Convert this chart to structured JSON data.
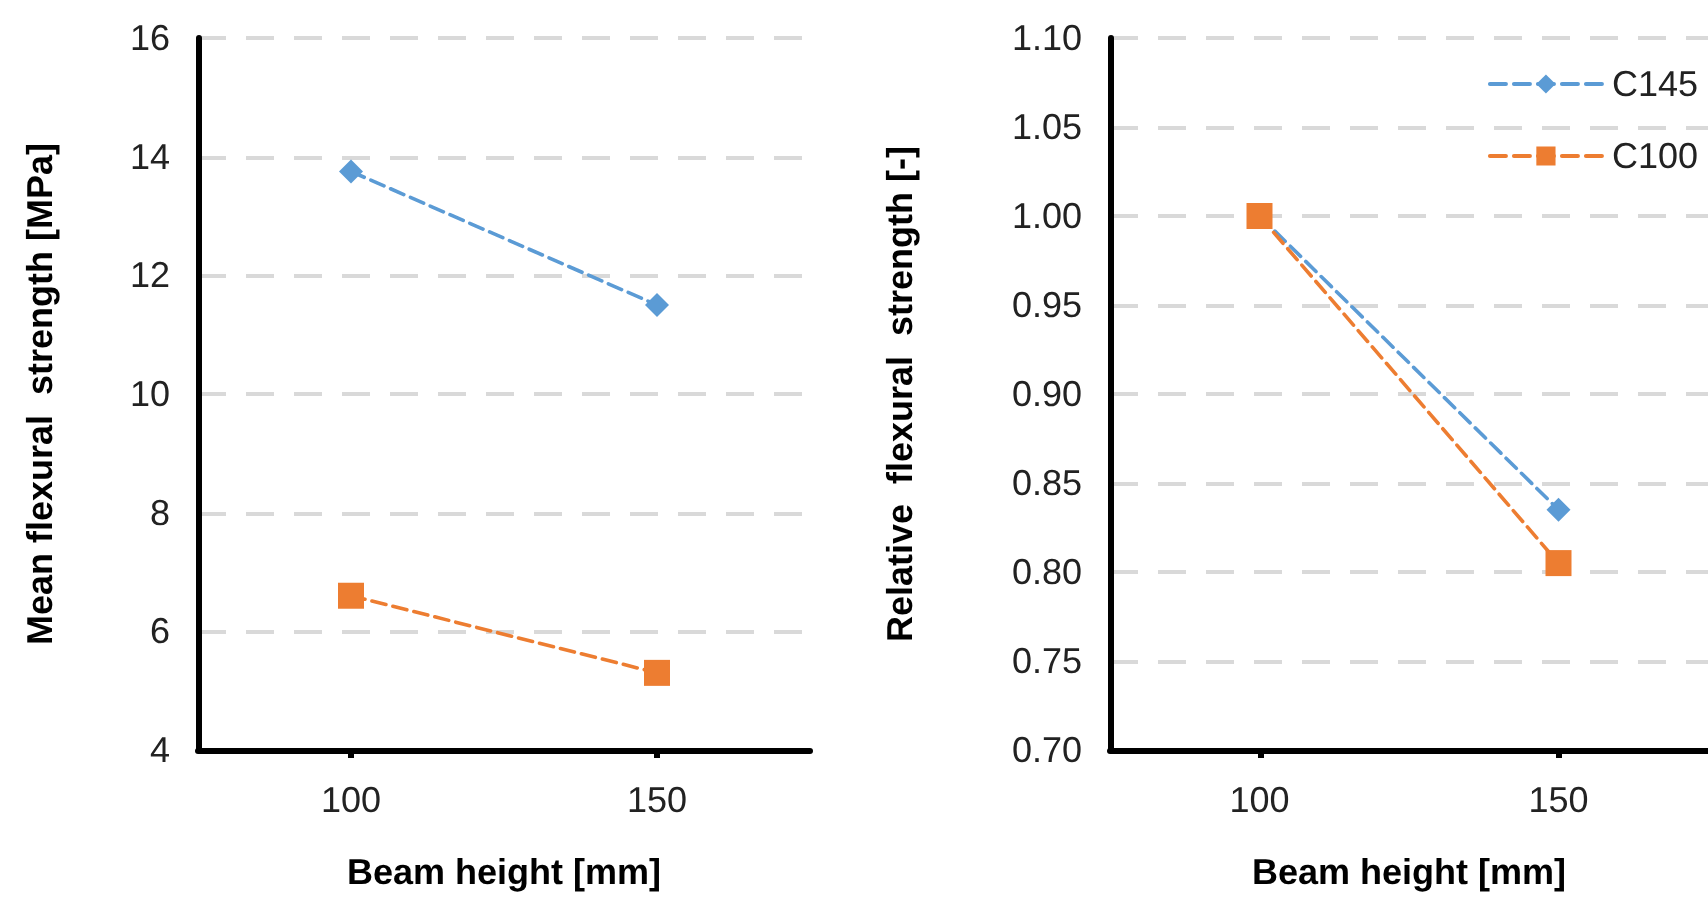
{
  "chart_data": [
    {
      "type": "line",
      "xlabel": "Beam height [mm]",
      "ylabel": "Mean flexural  strength [MPa]",
      "categories": [
        "100",
        "150"
      ],
      "series": [
        {
          "color": "#5b9bd5",
          "marker": "diamond",
          "values": [
            13.75,
            11.5
          ]
        },
        {
          "color": "#ed7d31",
          "marker": "square",
          "values": [
            6.6,
            5.3
          ]
        }
      ],
      "ylim": [
        4,
        16
      ],
      "yticks": [
        4,
        6,
        8,
        10,
        12,
        14,
        16
      ],
      "grid": "y",
      "legend": false,
      "line_style": "dashed"
    },
    {
      "type": "line",
      "xlabel": "Beam height [mm]",
      "ylabel": "Relative  flexural  strength [-]",
      "categories": [
        "100",
        "150"
      ],
      "series": [
        {
          "name": "C145",
          "color": "#5b9bd5",
          "marker": "diamond",
          "values": [
            1.0,
            0.835
          ]
        },
        {
          "name": "C100",
          "color": "#ed7d31",
          "marker": "square",
          "values": [
            1.0,
            0.805
          ]
        }
      ],
      "ylim": [
        0.7,
        1.1
      ],
      "yticks": [
        {
          "value": 0.7,
          "label": "0.70"
        },
        {
          "value": 0.75,
          "label": "0.75"
        },
        {
          "value": 0.8,
          "label": "0.80"
        },
        {
          "value": 0.85,
          "label": "0.85"
        },
        {
          "value": 0.9,
          "label": "0.90"
        },
        {
          "value": 0.95,
          "label": "0.95"
        },
        {
          "value": 1.0,
          "label": "1.00"
        },
        {
          "value": 1.05,
          "label": "1.05"
        },
        {
          "value": 1.1,
          "label": "1.10"
        }
      ],
      "grid": "y",
      "legend": "top right",
      "line_style": "dashed"
    }
  ]
}
